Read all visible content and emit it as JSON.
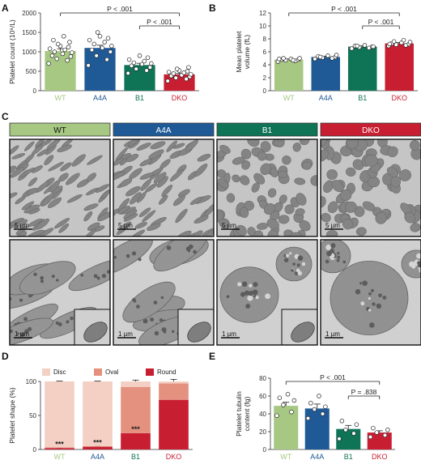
{
  "panels": {
    "A": "A",
    "B": "B",
    "C": "C",
    "D": "D",
    "E": "E"
  },
  "colors": {
    "WT": "#a6c882",
    "A4A": "#1f5a96",
    "B1": "#0f7356",
    "DKO": "#c81e32",
    "disc_WT": "#f2c9bd",
    "oval_WT": "#e4917f",
    "round_WT": "#c81e32"
  },
  "groups": [
    "WT",
    "A4A",
    "B1",
    "DKO"
  ],
  "chart_data": [
    {
      "id": "A",
      "type": "bar",
      "categories": [
        "WT",
        "A4A",
        "B1",
        "DKO"
      ],
      "values": [
        1020,
        1100,
        660,
        420
      ],
      "errors": [
        60,
        70,
        45,
        25
      ],
      "ylabel": "Platelet count (10⁹/L)",
      "ylim": [
        0,
        2000
      ],
      "yticks": [
        0,
        500,
        1000,
        1500,
        2000
      ],
      "points": [
        [
          700,
          780,
          820,
          880,
          900,
          950,
          980,
          1000,
          1050,
          1080,
          1120,
          1150,
          1200,
          1250,
          1300,
          1400
        ],
        [
          650,
          800,
          900,
          1000,
          1050,
          1100,
          1150,
          1200,
          1250,
          1300,
          1350,
          1400,
          1500
        ],
        [
          450,
          520,
          560,
          600,
          640,
          680,
          700,
          720,
          760,
          800,
          850,
          900
        ],
        [
          250,
          300,
          330,
          360,
          380,
          400,
          420,
          440,
          460,
          480,
          500,
          520,
          560,
          600
        ]
      ],
      "comparisons": [
        {
          "from": "WT",
          "to": "DKO",
          "label": "P < .001"
        },
        {
          "from": "B1",
          "to": "DKO",
          "label": "P < .001"
        }
      ]
    },
    {
      "id": "B",
      "type": "bar",
      "categories": [
        "WT",
        "A4A",
        "B1",
        "DKO"
      ],
      "values": [
        4.8,
        5.2,
        6.8,
        7.3
      ],
      "errors": [
        0.1,
        0.12,
        0.12,
        0.15
      ],
      "ylabel": "Mean platelet volume (fL)",
      "ylim": [
        0,
        12
      ],
      "yticks": [
        0,
        2,
        4,
        6,
        8,
        10,
        12
      ],
      "points": [
        [
          4.5,
          4.6,
          4.7,
          4.8,
          4.8,
          4.9,
          5.0,
          5.0,
          4.7,
          4.9
        ],
        [
          4.9,
          5.0,
          5.1,
          5.2,
          5.3,
          5.4,
          5.5,
          5.2
        ],
        [
          6.5,
          6.6,
          6.7,
          6.8,
          6.9,
          7.0,
          6.8,
          6.9
        ],
        [
          6.9,
          7.0,
          7.1,
          7.2,
          7.3,
          7.4,
          7.5,
          7.6,
          7.8,
          7.2
        ]
      ],
      "comparisons": [
        {
          "from": "WT",
          "to": "DKO",
          "label": "P < .001"
        },
        {
          "from": "B1",
          "to": "DKO",
          "label": "P < .001"
        }
      ]
    },
    {
      "id": "D",
      "type": "bar",
      "stacked": true,
      "categories": [
        "WT",
        "A4A",
        "B1",
        "DKO"
      ],
      "series": [
        {
          "name": "Round",
          "values": [
            2,
            4,
            24,
            73
          ],
          "errors": [
            0.5,
            0.8,
            2,
            2
          ]
        },
        {
          "name": "Oval",
          "values": [
            1,
            1,
            68,
            24
          ],
          "errors": [
            0,
            0,
            0,
            0
          ]
        },
        {
          "name": "Disc",
          "values": [
            97,
            95,
            8,
            3
          ],
          "errors": [
            0.5,
            0.5,
            2,
            3
          ]
        }
      ],
      "ylabel": "Platelet shape (%)",
      "ylim": [
        0,
        100
      ],
      "yticks": [
        0,
        50,
        100
      ],
      "legend": [
        "Disc",
        "Oval",
        "Round"
      ],
      "annotations": [
        "***",
        "***",
        "***"
      ]
    },
    {
      "id": "E",
      "type": "bar",
      "categories": [
        "WT",
        "A4A",
        "B1",
        "DKO"
      ],
      "values": [
        49,
        46,
        23,
        19
      ],
      "errors": [
        4,
        5,
        4,
        2
      ],
      "ylabel": "Platelet tubulin content (fg)",
      "ylim": [
        0,
        80
      ],
      "yticks": [
        0,
        20,
        40,
        60,
        80
      ],
      "points": [
        [
          38,
          42,
          50,
          55,
          58,
          62
        ],
        [
          35,
          40,
          45,
          48,
          52,
          60
        ],
        [
          12,
          18,
          22,
          28,
          32
        ],
        [
          14,
          16,
          19,
          22,
          24
        ]
      ],
      "comparisons": [
        {
          "from": "WT",
          "to": "DKO",
          "label": "P < .001"
        },
        {
          "from": "B1",
          "to": "DKO",
          "label": "P = .838"
        }
      ]
    }
  ],
  "micrographs": {
    "headers": [
      "WT",
      "A4A",
      "B1",
      "DKO"
    ],
    "scale_top": "5 µm",
    "scale_bottom": "1 µm"
  }
}
